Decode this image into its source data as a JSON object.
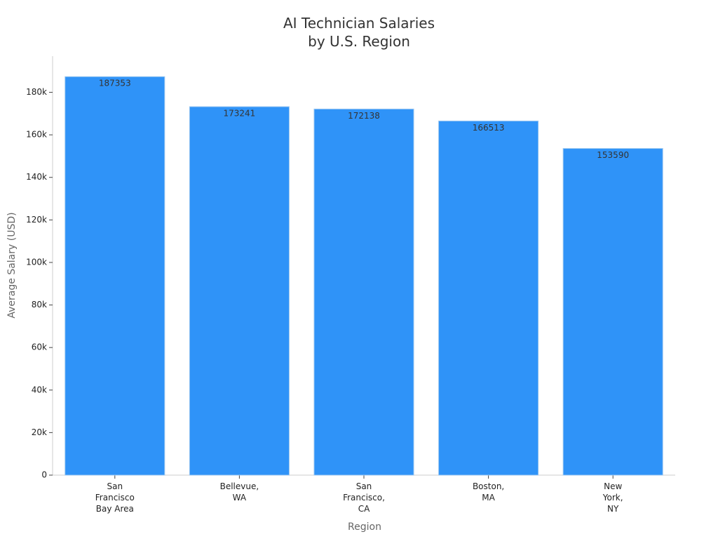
{
  "chart_data": {
    "type": "bar",
    "title": "AI Technician Salaries\nby U.S. Region",
    "x_label": "Region",
    "y_label": "Average Salary (USD)",
    "categories": [
      "San\nFrancisco\nBay Area",
      "Bellevue,\nWA",
      "San\nFrancisco,\nCA",
      "Boston,\nMA",
      "New\nYork,\nNY"
    ],
    "values": [
      187353,
      173241,
      172138,
      166513,
      153590
    ],
    "color": "#2f93f8",
    "ylim": [
      0,
      197000
    ],
    "yticks": [
      0,
      {
        "value": 20000,
        "label": "20k"
      },
      {
        "value": 40000,
        "label": "40k"
      },
      {
        "value": 60000,
        "label": "60k"
      },
      {
        "value": 80000,
        "label": "80k"
      },
      {
        "value": 100000,
        "label": "100k"
      },
      {
        "value": 120000,
        "label": "120k"
      },
      {
        "value": 140000,
        "label": "140k"
      },
      {
        "value": 160000,
        "label": "160k"
      },
      {
        "value": 180000,
        "label": "180k"
      }
    ],
    "grid": false
  }
}
